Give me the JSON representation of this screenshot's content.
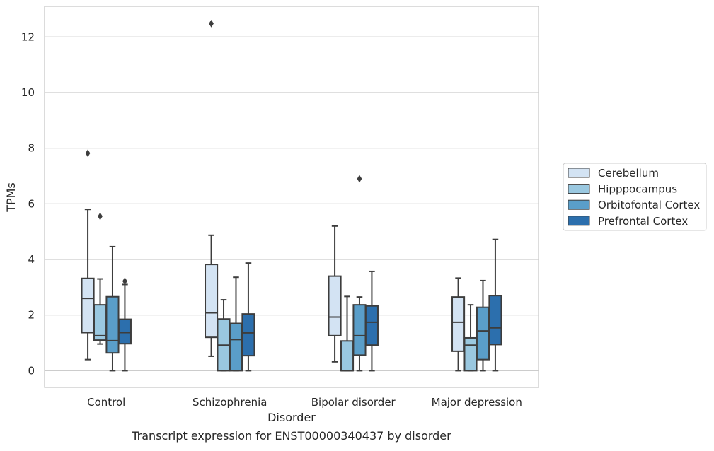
{
  "chart_data": {
    "type": "box",
    "title": "",
    "caption": "Transcript expression for ENST00000340437 by disorder",
    "xlabel": "Disorder",
    "ylabel": "TPMs",
    "ylim": [
      -0.6,
      13.1
    ],
    "yticks": [
      0,
      2,
      4,
      6,
      8,
      10,
      12
    ],
    "grid": "horizontal",
    "legend_position": "right",
    "categories": [
      "Control",
      "Schizophrenia",
      "Bipolar disorder",
      "Major depression"
    ],
    "series": [
      {
        "name": "Cerebellum",
        "color": "#d3e3f3",
        "boxes": [
          {
            "whislo": 0.4,
            "q1": 1.37,
            "med": 2.6,
            "q3": 3.32,
            "whishi": 5.8,
            "fliers": [
              7.82
            ]
          },
          {
            "whislo": 0.52,
            "q1": 1.2,
            "med": 2.08,
            "q3": 3.82,
            "whishi": 4.87,
            "fliers": [
              12.48
            ]
          },
          {
            "whislo": 0.32,
            "q1": 1.26,
            "med": 1.93,
            "q3": 3.4,
            "whishi": 5.2,
            "fliers": []
          },
          {
            "whislo": 0.0,
            "q1": 0.7,
            "med": 1.74,
            "q3": 2.65,
            "whishi": 3.33,
            "fliers": []
          }
        ]
      },
      {
        "name": "Hipppocampus",
        "color": "#9ac8e0",
        "boxes": [
          {
            "whislo": 0.96,
            "q1": 1.1,
            "med": 1.26,
            "q3": 2.37,
            "whishi": 3.3,
            "fliers": [
              5.55
            ]
          },
          {
            "whislo": 0.0,
            "q1": 0.0,
            "med": 0.92,
            "q3": 1.86,
            "whishi": 2.55,
            "fliers": []
          },
          {
            "whislo": 0.0,
            "q1": 0.0,
            "med": 0.0,
            "q3": 1.07,
            "whishi": 2.67,
            "fliers": []
          },
          {
            "whislo": 0.0,
            "q1": 0.0,
            "med": 0.92,
            "q3": 1.18,
            "whishi": 2.37,
            "fliers": []
          }
        ]
      },
      {
        "name": "Orbitofontal Cortex",
        "color": "#5a9ec9",
        "boxes": [
          {
            "whislo": 0.0,
            "q1": 0.64,
            "med": 1.08,
            "q3": 2.66,
            "whishi": 4.46,
            "fliers": []
          },
          {
            "whislo": 0.0,
            "q1": 0.0,
            "med": 1.12,
            "q3": 1.7,
            "whishi": 3.36,
            "fliers": []
          },
          {
            "whislo": 0.0,
            "q1": 0.56,
            "med": 1.26,
            "q3": 2.37,
            "whishi": 2.65,
            "fliers": [
              6.9
            ]
          },
          {
            "whislo": 0.0,
            "q1": 0.4,
            "med": 1.43,
            "q3": 2.28,
            "whishi": 3.24,
            "fliers": []
          }
        ]
      },
      {
        "name": "Prefrontal Cortex",
        "color": "#2c6fad",
        "boxes": [
          {
            "whislo": 0.0,
            "q1": 0.97,
            "med": 1.37,
            "q3": 1.85,
            "whishi": 3.1,
            "fliers": [
              3.22
            ]
          },
          {
            "whislo": 0.0,
            "q1": 0.54,
            "med": 1.36,
            "q3": 2.04,
            "whishi": 3.87,
            "fliers": []
          },
          {
            "whislo": 0.0,
            "q1": 0.92,
            "med": 1.74,
            "q3": 2.33,
            "whishi": 3.57,
            "fliers": []
          },
          {
            "whislo": 0.0,
            "q1": 0.94,
            "med": 1.54,
            "q3": 2.7,
            "whishi": 4.72,
            "fliers": []
          }
        ]
      }
    ]
  }
}
